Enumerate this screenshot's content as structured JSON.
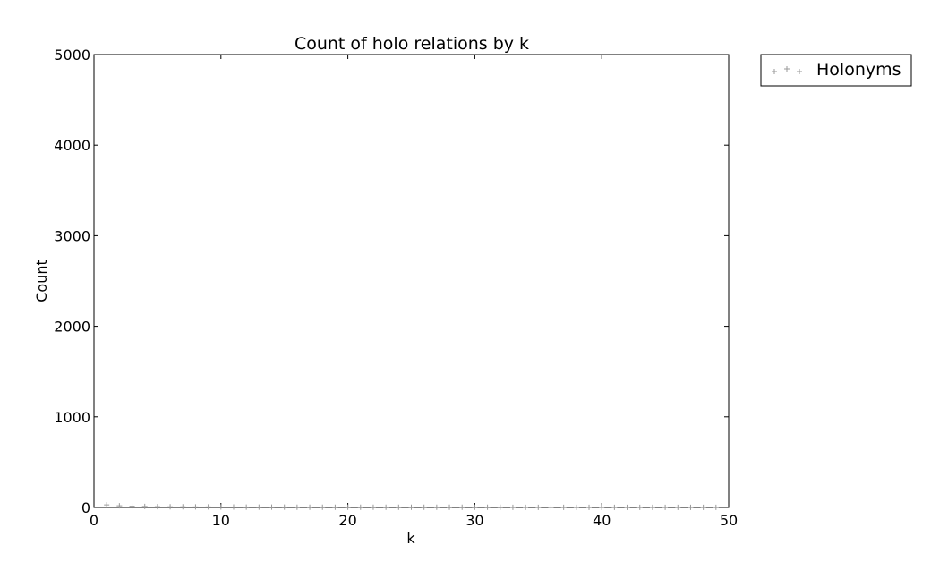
{
  "chart_data": {
    "type": "scatter",
    "title": "Count of holo relations by k",
    "xlabel": "k",
    "ylabel": "Count",
    "xlim": [
      0,
      50
    ],
    "ylim": [
      0,
      5000
    ],
    "xticks": [
      0,
      10,
      20,
      30,
      40,
      50
    ],
    "yticks": [
      0,
      1000,
      2000,
      3000,
      4000,
      5000
    ],
    "grid": false,
    "legend_position": "outside-top-right",
    "series": [
      {
        "name": "Holonyms",
        "marker": "plus",
        "color": "#9a9a9a",
        "x": [
          1,
          2,
          3,
          4,
          5,
          6,
          7,
          8,
          9,
          10,
          11,
          12,
          13,
          14,
          15,
          16,
          17,
          18,
          19,
          20,
          21,
          22,
          23,
          24,
          25,
          26,
          27,
          28,
          29,
          30,
          31,
          32,
          33,
          34,
          35,
          36,
          37,
          38,
          39,
          40,
          41,
          42,
          43,
          44,
          45,
          46,
          47,
          48,
          49
        ],
        "y": [
          28,
          18,
          14,
          11,
          9,
          8,
          7,
          6,
          6,
          5,
          5,
          4,
          4,
          4,
          4,
          3,
          3,
          3,
          3,
          3,
          3,
          2,
          2,
          2,
          2,
          2,
          2,
          2,
          2,
          2,
          2,
          2,
          1,
          1,
          1,
          1,
          1,
          1,
          1,
          1,
          1,
          1,
          1,
          1,
          1,
          1,
          1,
          1,
          1
        ]
      }
    ]
  }
}
